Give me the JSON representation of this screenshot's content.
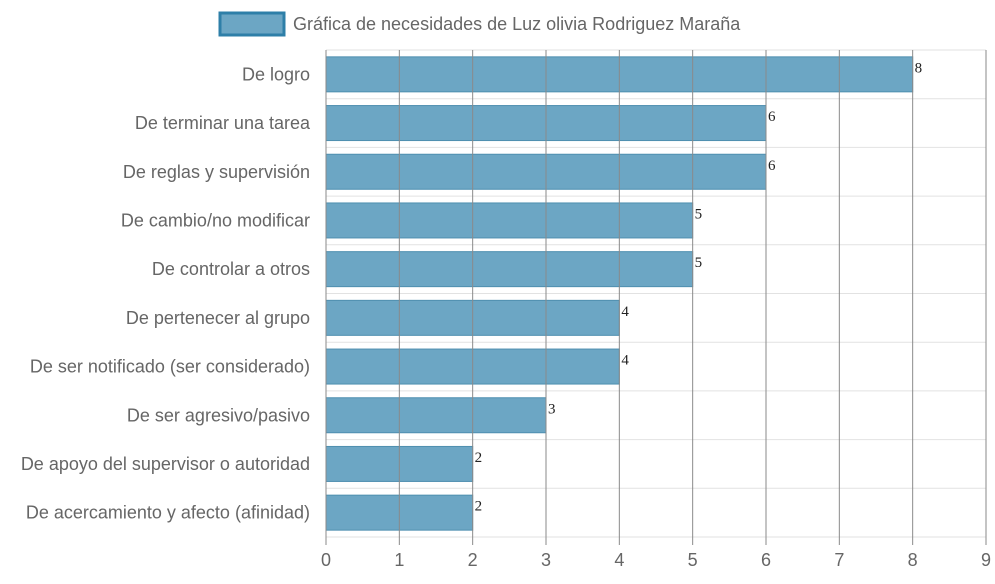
{
  "colors": {
    "bar_fill": "#6ca6c4",
    "bar_stroke": "#4f8fb0",
    "legend_fill": "#6ca6c4",
    "legend_stroke": "#2e7fa8",
    "grid_major": "#8a8a8a",
    "grid_minor": "#e2e2e2",
    "text": "#666666",
    "value_text": "#222222"
  },
  "chart_data": {
    "type": "bar",
    "orientation": "horizontal",
    "title": "",
    "xlabel": "",
    "ylabel": "",
    "xlim": [
      0,
      9
    ],
    "ticks": [
      0,
      1,
      2,
      3,
      4,
      5,
      6,
      7,
      8,
      9
    ],
    "grid": true,
    "legend_position": "top",
    "categories": [
      "De logro",
      "De terminar una tarea",
      "De reglas y supervisión",
      "De cambio/no modificar",
      "De controlar a otros",
      "De pertenecer al grupo",
      "De ser notificado (ser considerado)",
      "De ser agresivo/pasivo",
      "De apoyo del supervisor o autoridad",
      "De acercamiento y afecto (afinidad)"
    ],
    "series": [
      {
        "name": "Gráfica de necesidades de Luz olivia Rodriguez Maraña",
        "values": [
          8,
          6,
          6,
          5,
          5,
          4,
          4,
          3,
          2,
          2
        ]
      }
    ]
  }
}
